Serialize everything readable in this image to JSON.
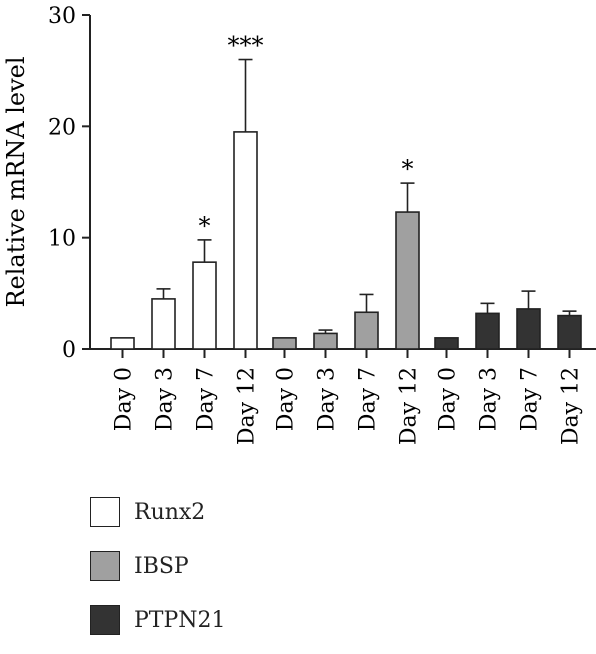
{
  "chart_data": {
    "type": "bar",
    "ylabel": "Relative mRNA level",
    "xlabel": "",
    "ylim": [
      0,
      30
    ],
    "yticks": [
      "0",
      "10",
      "20",
      "30"
    ],
    "categories": [
      "Day 0",
      "Day 3",
      "Day 7",
      "Day 12"
    ],
    "series": [
      {
        "name": "Runx2",
        "color": "#ffffff",
        "values": [
          1.0,
          4.5,
          7.8,
          19.5
        ],
        "errors": [
          0.0,
          0.9,
          2.0,
          6.5
        ],
        "annotations": [
          "",
          "",
          "*",
          "***"
        ]
      },
      {
        "name": "IBSP",
        "color": "#a0a0a0",
        "values": [
          1.0,
          1.4,
          3.3,
          12.3
        ],
        "errors": [
          0.0,
          0.3,
          1.6,
          2.6
        ],
        "annotations": [
          "",
          "",
          "",
          "*"
        ]
      },
      {
        "name": "PTPN21",
        "color": "#333333",
        "values": [
          1.0,
          3.2,
          3.6,
          3.0
        ],
        "errors": [
          0.0,
          0.9,
          1.6,
          0.4
        ],
        "annotations": [
          "",
          "",
          "",
          ""
        ]
      }
    ],
    "legend": "below",
    "grid": false
  }
}
